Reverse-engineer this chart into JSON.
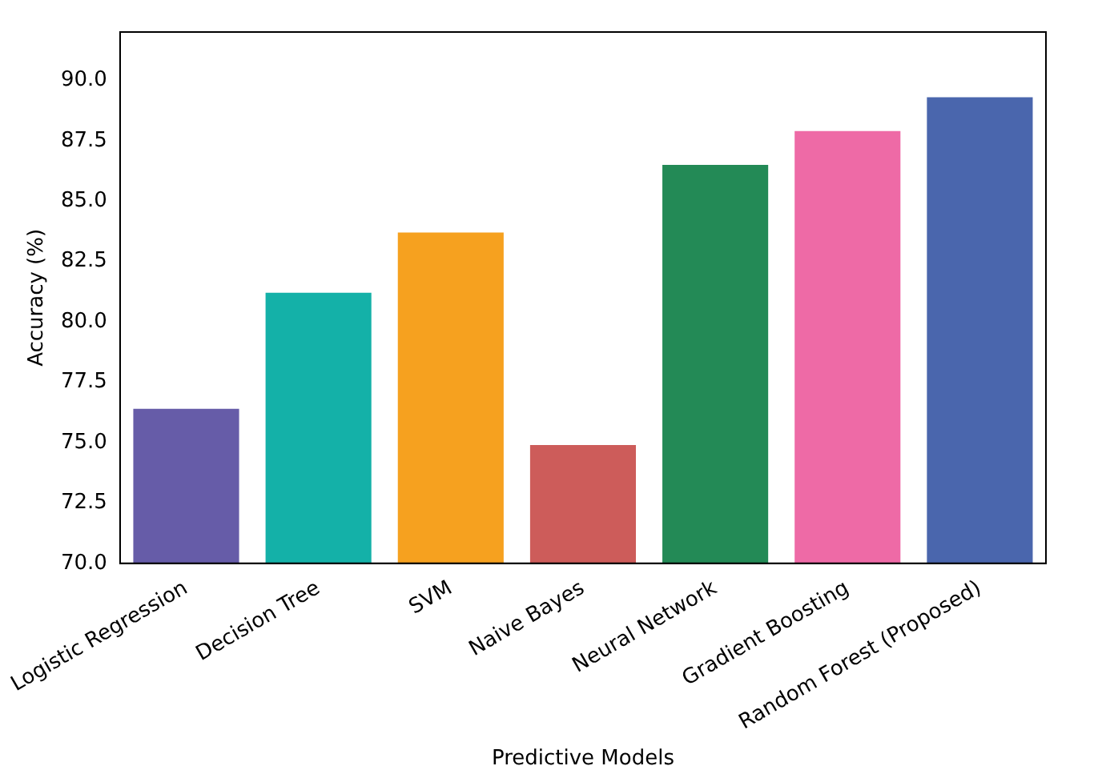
{
  "chart_data": {
    "type": "bar",
    "xlabel": "Predictive Models",
    "ylabel": "Accuracy (%)",
    "categories": [
      "Logistic Regression",
      "Decision Tree",
      "SVM",
      "Naive Bayes",
      "Neural Network",
      "Gradient Boosting",
      "Random Forest (Proposed)"
    ],
    "values": [
      76.4,
      81.2,
      83.7,
      74.9,
      86.5,
      87.9,
      89.3
    ],
    "colors": [
      "#665ca8",
      "#14b1a8",
      "#f6a11f",
      "#cd5c5a",
      "#238a56",
      "#ee6aa6",
      "#4a66ad"
    ],
    "ylim": [
      70,
      92
    ],
    "yticks": [
      {
        "value": 70,
        "label": "70.0"
      },
      {
        "value": 72.5,
        "label": "72.5"
      },
      {
        "value": 75,
        "label": "75.0"
      },
      {
        "value": 77.5,
        "label": "77.5"
      },
      {
        "value": 80,
        "label": "80.0"
      },
      {
        "value": 82.5,
        "label": "82.5"
      },
      {
        "value": 85,
        "label": "85.0"
      },
      {
        "value": 87.5,
        "label": "87.5"
      },
      {
        "value": 90,
        "label": "90.0"
      }
    ],
    "grid": false,
    "legend": false
  }
}
